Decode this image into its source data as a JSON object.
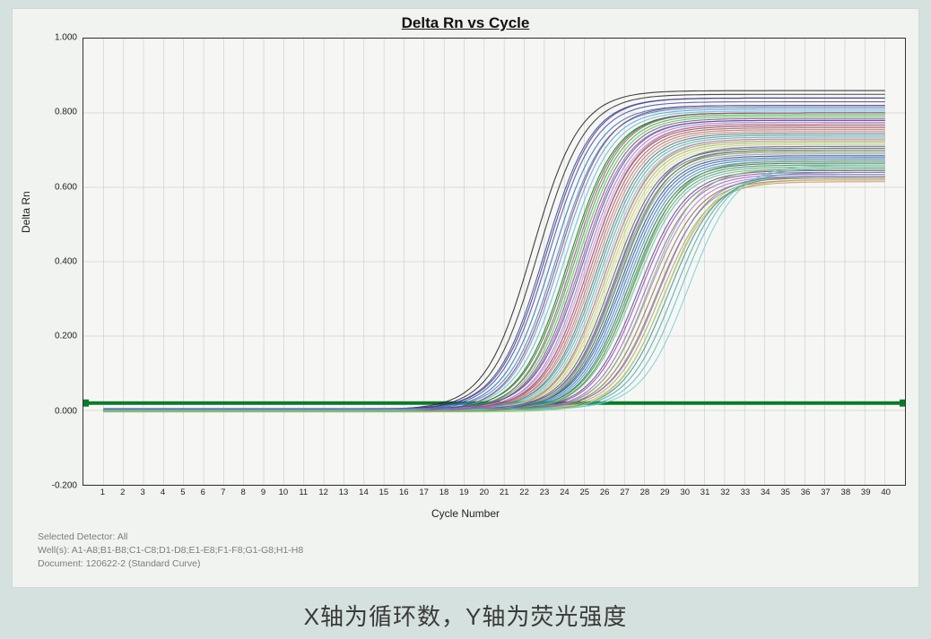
{
  "caption": "X轴为循环数，Y轴为荧光强度",
  "chart": {
    "type": "line",
    "title": "Delta Rn vs Cycle",
    "xlabel": "Cycle Number",
    "ylabel": "Delta Rn",
    "title_fontsize": 17,
    "label_fontsize": 12,
    "tick_fontsize": 10,
    "background_color": "#f6f7f5",
    "panel_background_color": "#f1f3f0",
    "page_background_color": "#d5e1de",
    "axis_color": "#333333",
    "grid_color": "#cfd1ca",
    "threshold_color": "#0a7a28",
    "threshold_width": 4,
    "threshold_value": 0.02,
    "line_width": 1.1,
    "xlim": [
      0,
      41
    ],
    "ylim": [
      -0.2,
      1.0
    ],
    "x_tick_step": 1,
    "y_tick_step": 0.2,
    "x_tick_labels": [
      "1",
      "2",
      "3",
      "4",
      "5",
      "6",
      "7",
      "8",
      "9",
      "10",
      "11",
      "12",
      "13",
      "14",
      "15",
      "16",
      "17",
      "18",
      "19",
      "20",
      "21",
      "22",
      "23",
      "24",
      "25",
      "26",
      "27",
      "28",
      "29",
      "30",
      "31",
      "32",
      "33",
      "34",
      "35",
      "36",
      "37",
      "38",
      "39",
      "40"
    ],
    "y_tick_labels": [
      "-0.200",
      "0.000",
      "0.200",
      "0.400",
      "0.600",
      "0.800",
      "1.000"
    ],
    "y_tick_values": [
      -0.2,
      0.0,
      0.2,
      0.4,
      0.6,
      0.8,
      1.0
    ],
    "series_colors": [
      "#1f1f1f",
      "#2a2a2a",
      "#3f3f92",
      "#4a4aa8",
      "#2e6fb0",
      "#3b86c9",
      "#56a1d6",
      "#6fb6df",
      "#1c6e1c",
      "#2a8a2a",
      "#3ea63e",
      "#58c058",
      "#7c4a8d",
      "#9460a6",
      "#ac7abd",
      "#c193d2",
      "#8a4a4a",
      "#a15b5b",
      "#b86d6d",
      "#ce8080",
      "#3a7c7c",
      "#4d9494",
      "#62abab",
      "#79c1c1",
      "#97a14a",
      "#adb85f",
      "#c2ce77",
      "#d6e293",
      "#5a5a5a",
      "#6e6e6e",
      "#828282",
      "#969696",
      "#1e4e8c",
      "#2b63a5",
      "#3b78bc",
      "#4d8dd0",
      "#2d6e4e",
      "#3e8a65",
      "#52a47d",
      "#68bd95",
      "#6e3e8c",
      "#854ea5",
      "#9c60bc",
      "#b274d0",
      "#8c6e3e",
      "#a5854e",
      "#bc9c60",
      "#d0b274",
      "#3e8c8c",
      "#4ea5a5",
      "#60bcbc",
      "#74d0d0",
      "#8c3e6e",
      "#a54e85",
      "#bc609c",
      "#d074b2",
      "#4e8c3e",
      "#65a54e",
      "#7dbc60",
      "#95d074",
      "#3e3e8c",
      "#4e4ea5",
      "#6060bc",
      "#7474d0"
    ],
    "series": [
      {
        "baseline": 0.002,
        "ct": 19.2,
        "plateau": 0.86
      },
      {
        "baseline": 0.001,
        "ct": 19.5,
        "plateau": 0.85
      },
      {
        "baseline": 0.003,
        "ct": 19.8,
        "plateau": 0.84
      },
      {
        "baseline": 0.002,
        "ct": 20.0,
        "plateau": 0.83
      },
      {
        "baseline": 0.001,
        "ct": 20.2,
        "plateau": 0.82
      },
      {
        "baseline": 0.002,
        "ct": 20.4,
        "plateau": 0.815
      },
      {
        "baseline": 0.0,
        "ct": 20.6,
        "plateau": 0.81
      },
      {
        "baseline": 0.002,
        "ct": 20.8,
        "plateau": 0.805
      },
      {
        "baseline": 0.001,
        "ct": 21.0,
        "plateau": 0.8
      },
      {
        "baseline": 0.003,
        "ct": 21.1,
        "plateau": 0.8
      },
      {
        "baseline": 0.002,
        "ct": 21.3,
        "plateau": 0.795
      },
      {
        "baseline": 0.001,
        "ct": 21.4,
        "plateau": 0.79
      },
      {
        "baseline": 0.0,
        "ct": 21.5,
        "plateau": 0.785
      },
      {
        "baseline": 0.002,
        "ct": 21.6,
        "plateau": 0.78
      },
      {
        "baseline": 0.001,
        "ct": 21.8,
        "plateau": 0.775
      },
      {
        "baseline": 0.003,
        "ct": 21.9,
        "plateau": 0.77
      },
      {
        "baseline": 0.002,
        "ct": 22.0,
        "plateau": 0.765
      },
      {
        "baseline": 0.001,
        "ct": 22.1,
        "plateau": 0.76
      },
      {
        "baseline": 0.0,
        "ct": 22.2,
        "plateau": 0.755
      },
      {
        "baseline": 0.002,
        "ct": 22.3,
        "plateau": 0.75
      },
      {
        "baseline": 0.001,
        "ct": 22.4,
        "plateau": 0.745
      },
      {
        "baseline": 0.003,
        "ct": 22.5,
        "plateau": 0.74
      },
      {
        "baseline": 0.002,
        "ct": 22.6,
        "plateau": 0.735
      },
      {
        "baseline": 0.001,
        "ct": 22.7,
        "plateau": 0.73
      },
      {
        "baseline": 0.0,
        "ct": 22.8,
        "plateau": 0.725
      },
      {
        "baseline": 0.002,
        "ct": 22.9,
        "plateau": 0.72
      },
      {
        "baseline": 0.001,
        "ct": 23.0,
        "plateau": 0.715
      },
      {
        "baseline": 0.003,
        "ct": 23.1,
        "plateau": 0.71
      },
      {
        "baseline": 0.002,
        "ct": 23.2,
        "plateau": 0.705
      },
      {
        "baseline": 0.001,
        "ct": 23.3,
        "plateau": 0.7
      },
      {
        "baseline": 0.0,
        "ct": 23.4,
        "plateau": 0.695
      },
      {
        "baseline": 0.002,
        "ct": 23.5,
        "plateau": 0.69
      },
      {
        "baseline": 0.001,
        "ct": 23.6,
        "plateau": 0.685
      },
      {
        "baseline": 0.003,
        "ct": 23.7,
        "plateau": 0.68
      },
      {
        "baseline": 0.002,
        "ct": 23.8,
        "plateau": 0.675
      },
      {
        "baseline": 0.001,
        "ct": 23.9,
        "plateau": 0.67
      },
      {
        "baseline": 0.0,
        "ct": 24.0,
        "plateau": 0.665
      },
      {
        "baseline": 0.002,
        "ct": 24.1,
        "plateau": 0.66
      },
      {
        "baseline": 0.001,
        "ct": 24.2,
        "plateau": 0.655
      },
      {
        "baseline": 0.003,
        "ct": 24.3,
        "plateau": 0.65
      },
      {
        "baseline": 0.002,
        "ct": 24.5,
        "plateau": 0.645
      },
      {
        "baseline": 0.001,
        "ct": 24.6,
        "plateau": 0.64
      },
      {
        "baseline": 0.0,
        "ct": 24.8,
        "plateau": 0.635
      },
      {
        "baseline": 0.002,
        "ct": 25.0,
        "plateau": 0.63
      },
      {
        "baseline": 0.001,
        "ct": 25.2,
        "plateau": 0.625
      },
      {
        "baseline": 0.003,
        "ct": 25.4,
        "plateau": 0.62
      },
      {
        "baseline": 0.002,
        "ct": 25.6,
        "plateau": 0.615
      },
      {
        "baseline": 0.001,
        "ct": 25.8,
        "plateau": 0.62
      },
      {
        "baseline": 0.0,
        "ct": 26.0,
        "plateau": 0.63
      },
      {
        "baseline": 0.002,
        "ct": 26.3,
        "plateau": 0.64
      },
      {
        "baseline": 0.001,
        "ct": 26.6,
        "plateau": 0.65
      },
      {
        "baseline": 0.003,
        "ct": 27.0,
        "plateau": 0.66
      },
      {
        "baseline": -0.002,
        "ct": 20.5,
        "plateau": 0.82
      },
      {
        "baseline": -0.003,
        "ct": 21.2,
        "plateau": 0.8
      },
      {
        "baseline": -0.001,
        "ct": 22.0,
        "plateau": 0.77
      },
      {
        "baseline": -0.004,
        "ct": 22.8,
        "plateau": 0.73
      },
      {
        "baseline": -0.002,
        "ct": 23.5,
        "plateau": 0.7
      },
      {
        "baseline": -0.003,
        "ct": 24.2,
        "plateau": 0.67
      },
      {
        "baseline": -0.001,
        "ct": 25.0,
        "plateau": 0.65
      },
      {
        "baseline": -0.004,
        "ct": 25.8,
        "plateau": 0.63
      },
      {
        "baseline": 0.004,
        "ct": 19.9,
        "plateau": 0.84
      },
      {
        "baseline": 0.005,
        "ct": 21.7,
        "plateau": 0.78
      },
      {
        "baseline": 0.004,
        "ct": 23.4,
        "plateau": 0.71
      },
      {
        "baseline": 0.005,
        "ct": 25.5,
        "plateau": 0.63
      }
    ]
  },
  "footer": {
    "line1": "Selected Detector: All",
    "line2": "Well(s): A1-A8;B1-B8;C1-C8;D1-D8;E1-E8;F1-F8;G1-G8;H1-H8",
    "line3": "Document: 120622-2 (Standard Curve)"
  }
}
